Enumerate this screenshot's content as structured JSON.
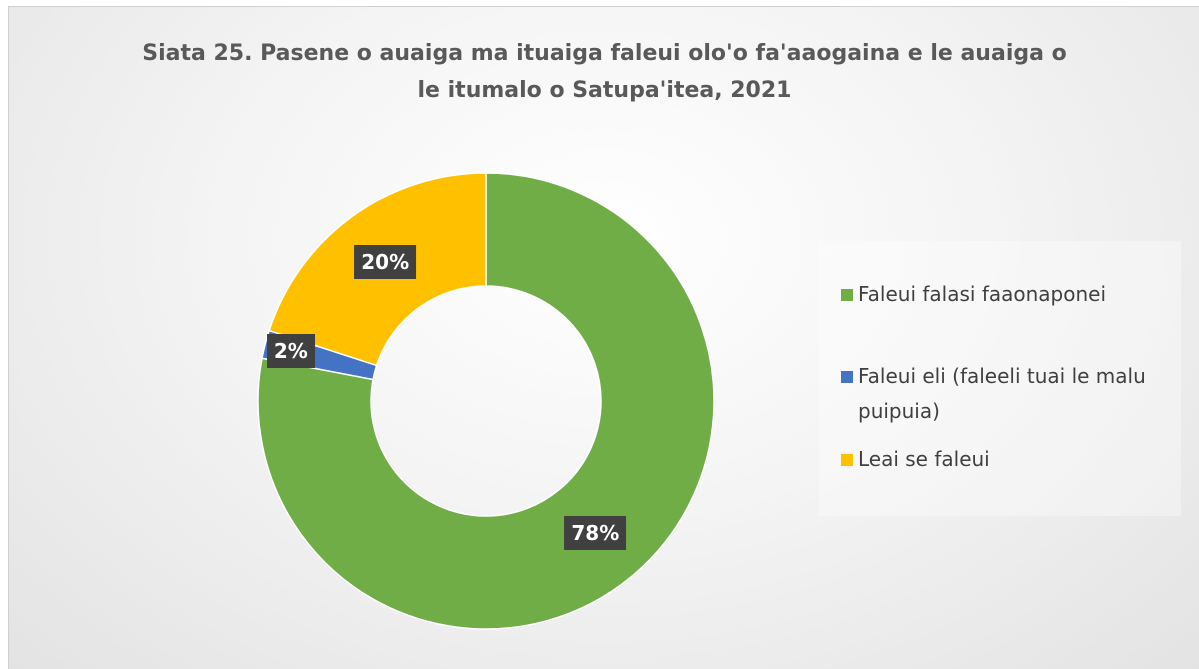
{
  "chart_data": {
    "type": "donut",
    "title": "Siata 25. Pasene o auaiga ma ituaiga faleui olo'o fa'aaogaina e le auaiga o le itumalo o Satupa'itea, 2021",
    "categories": [
      "Faleui falasi faaonaponei",
      "Faleui eli (faleeli tuai le malu puipuia)",
      "Leai se faleui"
    ],
    "values": [
      78,
      2,
      20
    ],
    "value_labels": [
      "78%",
      "2%",
      "20%"
    ],
    "colors": [
      "#70ad47",
      "#4472c4",
      "#ffc000"
    ],
    "legend": "right"
  }
}
